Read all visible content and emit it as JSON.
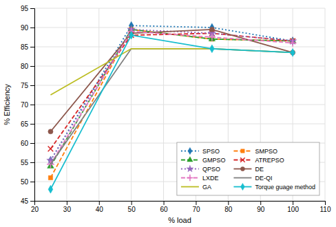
{
  "chart_data": {
    "type": "line",
    "xlabel": "% load",
    "ylabel": "% Efficiency",
    "x": [
      25,
      50,
      75,
      100
    ],
    "series": [
      {
        "name": "SPSO",
        "values": [
          55.5,
          90.5,
          90.0,
          86.5
        ],
        "line_style": "dotted",
        "marker": "diamond"
      },
      {
        "name": "SMPSO",
        "values": [
          51.0,
          89.5,
          87.0,
          86.5
        ],
        "line_style": "dashed",
        "marker": "square"
      },
      {
        "name": "GMPSO",
        "values": [
          54.0,
          89.5,
          87.0,
          86.5
        ],
        "line_style": "dashed",
        "marker": "triangle"
      },
      {
        "name": "ATREPSO",
        "values": [
          58.5,
          88.0,
          88.5,
          86.5
        ],
        "line_style": "dashed",
        "marker": "x"
      },
      {
        "name": "QPSO",
        "values": [
          55.5,
          89.5,
          88.5,
          86.5
        ],
        "line_style": "dotted",
        "marker": "star"
      },
      {
        "name": "DE",
        "values": [
          63.0,
          88.5,
          89.5,
          83.5
        ],
        "line_style": "solid",
        "marker": "circle"
      },
      {
        "name": "LXDE",
        "values": [
          54.5,
          89.0,
          87.5,
          86.0
        ],
        "line_style": "dashed",
        "marker": "plus"
      },
      {
        "name": "DE-QI",
        "values": [
          54.5,
          84.5,
          84.5,
          83.5
        ],
        "line_style": "solid",
        "marker": "none"
      },
      {
        "name": "GA",
        "values": [
          72.5,
          84.5,
          84.5,
          83.5
        ],
        "line_style": "solid",
        "marker": "none"
      },
      {
        "name": "Torque guage method",
        "values": [
          48.0,
          88.0,
          84.5,
          83.5
        ],
        "line_style": "solid",
        "marker": "diamond"
      }
    ],
    "xlim": [
      20,
      110
    ],
    "ylim": [
      45,
      95
    ],
    "xticks": [
      20,
      30,
      40,
      50,
      60,
      70,
      80,
      90,
      100,
      110
    ],
    "yticks": [
      45,
      50,
      55,
      60,
      65,
      70,
      75,
      80,
      85,
      90,
      95
    ],
    "grid": true,
    "legend": "lower right"
  }
}
